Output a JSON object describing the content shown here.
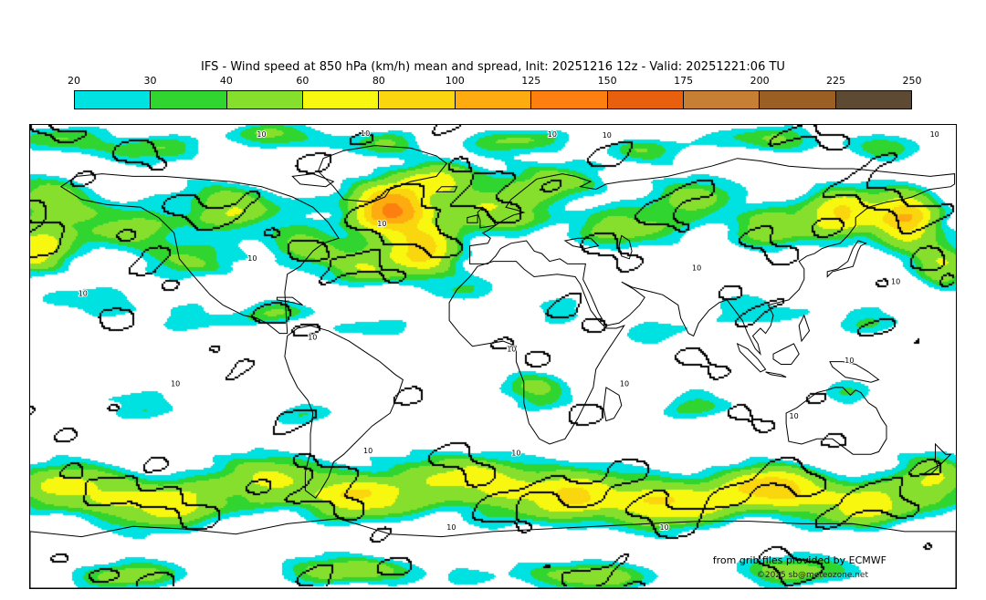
{
  "title": "IFS - Wind speed at 850 hPa (km/h) mean and spread, Init: 20251216 12z - Valid: 20251221:06 TU",
  "attribution": {
    "source_line": "from grib files provided by ECMWF",
    "copyright_line": "©2025 sb@meteozone.net"
  },
  "chart_data": {
    "type": "heatmap",
    "title": "IFS - Wind speed at 850 hPa (km/h) mean and spread",
    "model": "IFS",
    "variable": "Wind speed at 850 hPa",
    "units": "km/h",
    "init": "20251216 12z",
    "valid": "20251221:06 TU",
    "projection": "equirectangular world map, lon -180..180, lat 90..-90",
    "legend": {
      "position": "top",
      "ticks": [
        20,
        30,
        40,
        60,
        80,
        100,
        125,
        150,
        175,
        200,
        225,
        250
      ],
      "colors": [
        "#00e1e1",
        "#30d530",
        "#86df2d",
        "#f7f70f",
        "#f9d60e",
        "#fdab0f",
        "#fd7f0f",
        "#e85f0e",
        "#c67f33",
        "#9a5f22",
        "#5e4a33"
      ],
      "below_min_color": "#ffffff"
    },
    "contour_labels": {
      "value": "10",
      "positions": [
        {
          "x": 0.245,
          "y": 0.012
        },
        {
          "x": 0.357,
          "y": 0.01
        },
        {
          "x": 0.559,
          "y": 0.012
        },
        {
          "x": 0.618,
          "y": 0.014
        },
        {
          "x": 0.972,
          "y": 0.012
        },
        {
          "x": 0.375,
          "y": 0.205
        },
        {
          "x": 0.052,
          "y": 0.355
        },
        {
          "x": 0.515,
          "y": 0.475
        },
        {
          "x": 0.715,
          "y": 0.3
        },
        {
          "x": 0.36,
          "y": 0.695
        },
        {
          "x": 0.52,
          "y": 0.7
        },
        {
          "x": 0.637,
          "y": 0.55
        },
        {
          "x": 0.82,
          "y": 0.62
        },
        {
          "x": 0.152,
          "y": 0.55
        },
        {
          "x": 0.3,
          "y": 0.45
        },
        {
          "x": 0.45,
          "y": 0.86
        },
        {
          "x": 0.68,
          "y": 0.86
        },
        {
          "x": 0.88,
          "y": 0.5
        },
        {
          "x": 0.235,
          "y": 0.28
        },
        {
          "x": 0.93,
          "y": 0.33
        }
      ]
    },
    "field_bumps": [
      {
        "x": 0.03,
        "y": 0.03,
        "rx": 0.05,
        "ry": 0.03,
        "a": 40
      },
      {
        "x": 0.13,
        "y": 0.05,
        "rx": 0.06,
        "ry": 0.035,
        "a": 38
      },
      {
        "x": 0.27,
        "y": 0.02,
        "rx": 0.05,
        "ry": 0.03,
        "a": 42
      },
      {
        "x": 0.38,
        "y": 0.04,
        "rx": 0.04,
        "ry": 0.03,
        "a": 36
      },
      {
        "x": 0.52,
        "y": 0.03,
        "rx": 0.06,
        "ry": 0.03,
        "a": 40
      },
      {
        "x": 0.66,
        "y": 0.05,
        "rx": 0.05,
        "ry": 0.03,
        "a": 35
      },
      {
        "x": 0.8,
        "y": 0.03,
        "rx": 0.06,
        "ry": 0.03,
        "a": 42
      },
      {
        "x": 0.93,
        "y": 0.05,
        "rx": 0.04,
        "ry": 0.03,
        "a": 36
      },
      {
        "x": 0.005,
        "y": 0.27,
        "rx": 0.035,
        "ry": 0.05,
        "a": 70
      },
      {
        "x": 0.02,
        "y": 0.16,
        "rx": 0.05,
        "ry": 0.05,
        "a": 45
      },
      {
        "x": 0.1,
        "y": 0.22,
        "rx": 0.06,
        "ry": 0.05,
        "a": 40
      },
      {
        "x": 0.17,
        "y": 0.3,
        "rx": 0.05,
        "ry": 0.04,
        "a": 35
      },
      {
        "x": 0.22,
        "y": 0.18,
        "rx": 0.05,
        "ry": 0.05,
        "a": 48
      },
      {
        "x": 0.3,
        "y": 0.26,
        "rx": 0.04,
        "ry": 0.04,
        "a": 40
      },
      {
        "x": 0.39,
        "y": 0.18,
        "rx": 0.04,
        "ry": 0.055,
        "a": 115
      },
      {
        "x": 0.425,
        "y": 0.27,
        "rx": 0.035,
        "ry": 0.05,
        "a": 80
      },
      {
        "x": 0.44,
        "y": 0.115,
        "rx": 0.04,
        "ry": 0.035,
        "a": 65
      },
      {
        "x": 0.36,
        "y": 0.31,
        "rx": 0.04,
        "ry": 0.04,
        "a": 50
      },
      {
        "x": 0.5,
        "y": 0.18,
        "rx": 0.05,
        "ry": 0.045,
        "a": 45
      },
      {
        "x": 0.57,
        "y": 0.12,
        "rx": 0.05,
        "ry": 0.04,
        "a": 40
      },
      {
        "x": 0.64,
        "y": 0.22,
        "rx": 0.05,
        "ry": 0.04,
        "a": 38
      },
      {
        "x": 0.72,
        "y": 0.16,
        "rx": 0.05,
        "ry": 0.04,
        "a": 36
      },
      {
        "x": 0.8,
        "y": 0.22,
        "rx": 0.04,
        "ry": 0.04,
        "a": 45
      },
      {
        "x": 0.875,
        "y": 0.19,
        "rx": 0.04,
        "ry": 0.05,
        "a": 70
      },
      {
        "x": 0.945,
        "y": 0.2,
        "rx": 0.035,
        "ry": 0.06,
        "a": 90
      },
      {
        "x": 0.985,
        "y": 0.3,
        "rx": 0.03,
        "ry": 0.05,
        "a": 50
      },
      {
        "x": 0.06,
        "y": 0.38,
        "rx": 0.05,
        "ry": 0.035,
        "a": 30
      },
      {
        "x": 0.18,
        "y": 0.42,
        "rx": 0.06,
        "ry": 0.04,
        "a": 26
      },
      {
        "x": 0.27,
        "y": 0.4,
        "rx": 0.04,
        "ry": 0.03,
        "a": 32
      },
      {
        "x": 0.37,
        "y": 0.44,
        "rx": 0.05,
        "ry": 0.035,
        "a": 26
      },
      {
        "x": 0.47,
        "y": 0.36,
        "rx": 0.035,
        "ry": 0.03,
        "a": 28
      },
      {
        "x": 0.565,
        "y": 0.4,
        "rx": 0.035,
        "ry": 0.035,
        "a": 30
      },
      {
        "x": 0.68,
        "y": 0.44,
        "rx": 0.05,
        "ry": 0.04,
        "a": 28
      },
      {
        "x": 0.78,
        "y": 0.4,
        "rx": 0.05,
        "ry": 0.04,
        "a": 26
      },
      {
        "x": 0.9,
        "y": 0.42,
        "rx": 0.05,
        "ry": 0.04,
        "a": 28
      },
      {
        "x": 0.54,
        "y": 0.55,
        "rx": 0.04,
        "ry": 0.03,
        "a": 24
      },
      {
        "x": 0.12,
        "y": 0.6,
        "rx": 0.06,
        "ry": 0.04,
        "a": 30
      },
      {
        "x": 0.3,
        "y": 0.62,
        "rx": 0.05,
        "ry": 0.04,
        "a": 28
      },
      {
        "x": 0.55,
        "y": 0.58,
        "rx": 0.05,
        "ry": 0.035,
        "a": 30
      },
      {
        "x": 0.72,
        "y": 0.6,
        "rx": 0.05,
        "ry": 0.04,
        "a": 32
      },
      {
        "x": 0.88,
        "y": 0.58,
        "rx": 0.04,
        "ry": 0.035,
        "a": 28
      },
      {
        "x": 0.04,
        "y": 0.78,
        "rx": 0.06,
        "ry": 0.05,
        "a": 55
      },
      {
        "x": 0.14,
        "y": 0.82,
        "rx": 0.07,
        "ry": 0.05,
        "a": 60
      },
      {
        "x": 0.26,
        "y": 0.76,
        "rx": 0.06,
        "ry": 0.05,
        "a": 50
      },
      {
        "x": 0.36,
        "y": 0.8,
        "rx": 0.06,
        "ry": 0.045,
        "a": 62
      },
      {
        "x": 0.47,
        "y": 0.76,
        "rx": 0.06,
        "ry": 0.05,
        "a": 55
      },
      {
        "x": 0.585,
        "y": 0.8,
        "rx": 0.07,
        "ry": 0.05,
        "a": 70
      },
      {
        "x": 0.7,
        "y": 0.82,
        "rx": 0.06,
        "ry": 0.045,
        "a": 65
      },
      {
        "x": 0.8,
        "y": 0.78,
        "rx": 0.05,
        "ry": 0.045,
        "a": 85
      },
      {
        "x": 0.9,
        "y": 0.82,
        "rx": 0.06,
        "ry": 0.05,
        "a": 60
      },
      {
        "x": 0.975,
        "y": 0.76,
        "rx": 0.04,
        "ry": 0.05,
        "a": 55
      },
      {
        "x": 0.1,
        "y": 0.97,
        "rx": 0.06,
        "ry": 0.03,
        "a": 42
      },
      {
        "x": 0.35,
        "y": 0.96,
        "rx": 0.07,
        "ry": 0.03,
        "a": 38
      },
      {
        "x": 0.6,
        "y": 0.97,
        "rx": 0.06,
        "ry": 0.03,
        "a": 44
      },
      {
        "x": 0.82,
        "y": 0.96,
        "rx": 0.06,
        "ry": 0.03,
        "a": 40
      },
      {
        "x": 0.5,
        "y": 0.2,
        "rx": 0.6,
        "ry": 0.13,
        "a": 14
      },
      {
        "x": 0.5,
        "y": 0.79,
        "rx": 0.6,
        "ry": 0.11,
        "a": 16
      },
      {
        "x": 0.5,
        "y": 0.97,
        "rx": 0.6,
        "ry": 0.05,
        "a": 12
      }
    ]
  }
}
